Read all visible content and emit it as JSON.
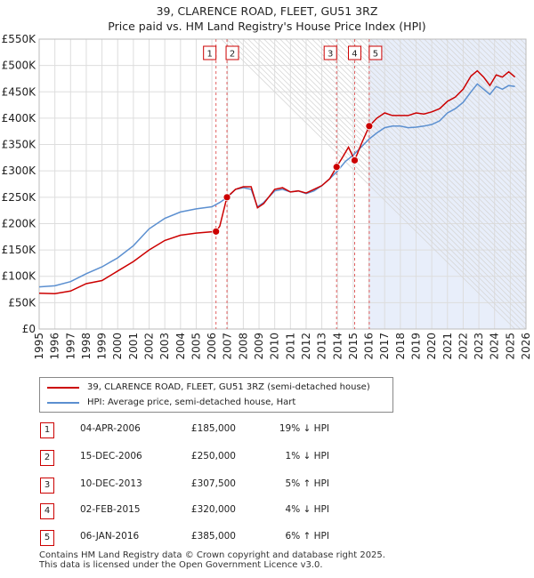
{
  "title_line1": "39, CLARENCE ROAD, FLEET, GU51 3RZ",
  "title_line2": "Price paid vs. HM Land Registry's House Price Index (HPI)",
  "colors": {
    "property": "#cc0000",
    "hpi": "#5b8fd0",
    "shade": "#e8eefa",
    "marker": "#cc0000"
  },
  "legend": {
    "property": "39, CLARENCE ROAD, FLEET, GU51 3RZ (semi-detached house)",
    "hpi": "HPI: Average price, semi-detached house, Hart"
  },
  "transactions": [
    {
      "num": "1",
      "date": "04-APR-2006",
      "price": "£185,000",
      "hpi": "19% ↓ HPI"
    },
    {
      "num": "2",
      "date": "15-DEC-2006",
      "price": "£250,000",
      "hpi": "1% ↓ HPI"
    },
    {
      "num": "3",
      "date": "10-DEC-2013",
      "price": "£307,500",
      "hpi": "5% ↑ HPI"
    },
    {
      "num": "4",
      "date": "02-FEB-2015",
      "price": "£320,000",
      "hpi": "4% ↓ HPI"
    },
    {
      "num": "5",
      "date": "06-JAN-2016",
      "price": "£385,000",
      "hpi": "6% ↑ HPI"
    }
  ],
  "footer_line1": "Contains HM Land Registry data © Crown copyright and database right 2025.",
  "footer_line2": "This data is licensed under the Open Government Licence v3.0.",
  "chart_data": {
    "type": "line",
    "title": "Price paid vs. HM Land Registry's House Price Index (HPI)",
    "xlabel": "",
    "ylabel": "",
    "xlim": [
      1995,
      2026
    ],
    "ylim": [
      0,
      550000
    ],
    "yticks": [
      0,
      50000,
      100000,
      150000,
      200000,
      250000,
      300000,
      350000,
      400000,
      450000,
      500000,
      550000
    ],
    "ytick_labels": [
      "£0",
      "£50K",
      "£100K",
      "£150K",
      "£200K",
      "£250K",
      "£300K",
      "£350K",
      "£400K",
      "£450K",
      "£500K",
      "£550K"
    ],
    "xticks": [
      1995,
      1996,
      1997,
      1998,
      1999,
      2000,
      2001,
      2002,
      2003,
      2004,
      2005,
      2006,
      2007,
      2008,
      2009,
      2010,
      2011,
      2012,
      2013,
      2014,
      2015,
      2016,
      2017,
      2018,
      2019,
      2020,
      2021,
      2022,
      2023,
      2024,
      2025,
      2026
    ],
    "shaded_from": 2016.02,
    "future_from": 2025.3,
    "series": [
      {
        "name": "39, CLARENCE ROAD, FLEET, GU51 3RZ (semi-detached house)",
        "x": [
          1995.0,
          1996.0,
          1997.0,
          1998.0,
          1999.0,
          2000.0,
          2001.0,
          2002.0,
          2003.0,
          2004.0,
          2005.0,
          2006.26,
          2006.5,
          2006.96,
          2007.5,
          2008.0,
          2008.5,
          2008.9,
          2009.3,
          2010.0,
          2010.5,
          2011.0,
          2011.5,
          2012.0,
          2012.5,
          2013.0,
          2013.5,
          2013.94,
          2014.3,
          2014.7,
          2015.09,
          2015.5,
          2016.02,
          2016.5,
          2017.0,
          2017.5,
          2018.0,
          2018.5,
          2019.0,
          2019.5,
          2020.0,
          2020.5,
          2021.0,
          2021.5,
          2022.0,
          2022.5,
          2022.9,
          2023.3,
          2023.7,
          2024.1,
          2024.5,
          2024.9,
          2025.3
        ],
        "y": [
          68000,
          67000,
          72000,
          86000,
          92000,
          110000,
          128000,
          150000,
          168000,
          178000,
          182000,
          185000,
          195000,
          250000,
          265000,
          270000,
          270000,
          230000,
          238000,
          265000,
          268000,
          260000,
          262000,
          258000,
          265000,
          272000,
          285000,
          307500,
          325000,
          345000,
          320000,
          350000,
          385000,
          400000,
          410000,
          405000,
          405000,
          405000,
          410000,
          408000,
          412000,
          418000,
          432000,
          440000,
          455000,
          480000,
          490000,
          478000,
          462000,
          482000,
          478000,
          488000,
          478000
        ]
      },
      {
        "name": "HPI: Average price, semi-detached house, Hart",
        "x": [
          1995.0,
          1996.0,
          1997.0,
          1998.0,
          1999.0,
          2000.0,
          2001.0,
          2002.0,
          2003.0,
          2004.0,
          2005.0,
          2006.0,
          2006.5,
          2007.0,
          2007.5,
          2008.0,
          2008.5,
          2008.9,
          2009.3,
          2010.0,
          2010.5,
          2011.0,
          2011.5,
          2012.0,
          2012.5,
          2013.0,
          2013.5,
          2014.0,
          2014.5,
          2015.0,
          2015.5,
          2016.0,
          2016.5,
          2017.0,
          2017.5,
          2018.0,
          2018.5,
          2019.0,
          2019.5,
          2020.0,
          2020.5,
          2021.0,
          2021.5,
          2022.0,
          2022.5,
          2022.9,
          2023.3,
          2023.7,
          2024.1,
          2024.5,
          2024.9,
          2025.3
        ],
        "y": [
          80000,
          82000,
          90000,
          105000,
          118000,
          135000,
          158000,
          190000,
          210000,
          222000,
          228000,
          232000,
          240000,
          250000,
          265000,
          268000,
          265000,
          232000,
          240000,
          262000,
          265000,
          260000,
          262000,
          257000,
          262000,
          272000,
          285000,
          300000,
          318000,
          330000,
          345000,
          360000,
          372000,
          382000,
          385000,
          385000,
          382000,
          383000,
          385000,
          388000,
          395000,
          410000,
          418000,
          430000,
          450000,
          465000,
          455000,
          445000,
          460000,
          455000,
          462000,
          460000
        ]
      }
    ],
    "markers": [
      {
        "label": "1",
        "x": 2006.26,
        "y": 185000
      },
      {
        "label": "2",
        "x": 2006.96,
        "y": 250000
      },
      {
        "label": "3",
        "x": 2013.94,
        "y": 307500
      },
      {
        "label": "4",
        "x": 2015.09,
        "y": 320000
      },
      {
        "label": "5",
        "x": 2016.02,
        "y": 385000
      }
    ]
  }
}
